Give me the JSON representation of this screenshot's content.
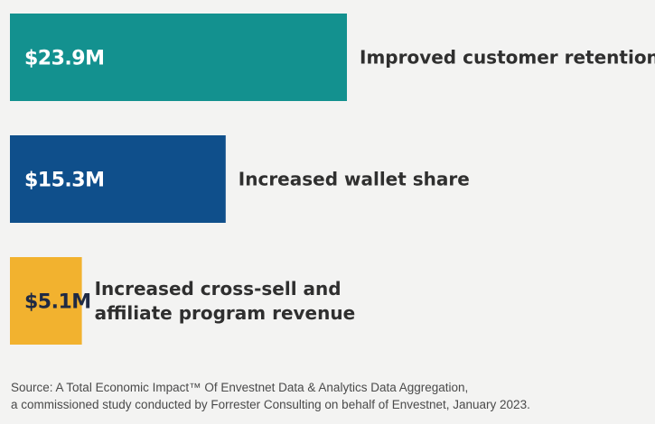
{
  "chart_data": {
    "type": "bar",
    "orientation": "horizontal",
    "categories": [
      "Improved customer retention",
      "Increased wallet share",
      "Increased cross-sell and affiliate program revenue"
    ],
    "category_lines": [
      [
        "Improved customer retention"
      ],
      [
        "Increased wallet share"
      ],
      [
        "Increased cross-sell and",
        "affiliate program revenue"
      ]
    ],
    "values": [
      23.9,
      15.3,
      5.1
    ],
    "value_labels": [
      "$23.9M",
      "$15.3M",
      "$5.1M"
    ],
    "unit": "$M",
    "colors": [
      "#13918f",
      "#0f4f8b",
      "#f2b22f"
    ],
    "value_label_colors": [
      "#ffffff",
      "#ffffff",
      "#1f2a44"
    ],
    "title": "",
    "xlabel": "",
    "ylabel": "",
    "xlim": [
      0,
      23.9
    ],
    "grid": false,
    "legend": "none"
  },
  "source": {
    "line1": "Source: A Total Economic Impact™ Of Envestnet Data & Analytics Data Aggregation,",
    "line2": "a commissioned study conducted by Forrester Consulting on behalf of Envestnet, January 2023."
  }
}
